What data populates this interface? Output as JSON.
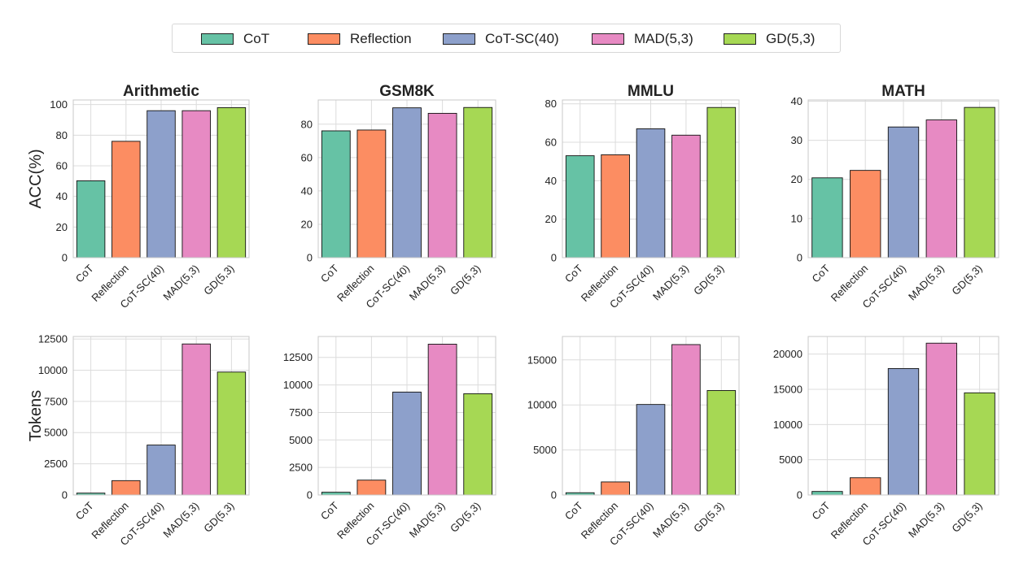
{
  "colors": {
    "CoT": "#66c2a5",
    "Reflection": "#fc8d62",
    "CoT-SC(40)": "#8da0cb",
    "MAD(5,3)": "#e78ac3",
    "GD(5,3)": "#a6d854",
    "grid": "#dcdcdc",
    "axis": "#c8c8c8",
    "text": "#222222"
  },
  "legend": {
    "items": [
      "CoT",
      "Reflection",
      "CoT-SC(40)",
      "MAD(5,3)",
      "GD(5,3)"
    ]
  },
  "row_labels": {
    "top": "ACC(%)",
    "bottom": "Tokens"
  },
  "chart_data": [
    {
      "type": "bar",
      "title": "Arithmetic",
      "ylabel": "ACC(%)",
      "categories": [
        "CoT",
        "Reflection",
        "CoT-SC(40)",
        "MAD(5,3)",
        "GD(5,3)"
      ],
      "values": [
        50.2,
        76,
        96,
        96,
        98
      ],
      "ylim": [
        0,
        103
      ],
      "yticks": [
        0,
        20,
        40,
        60,
        80,
        100
      ],
      "grid": true
    },
    {
      "type": "bar",
      "title": "GSM8K",
      "ylabel": "",
      "categories": [
        "CoT",
        "Reflection",
        "CoT-SC(40)",
        "MAD(5,3)",
        "GD(5,3)"
      ],
      "values": [
        76,
        76.5,
        89.8,
        86.5,
        90
      ],
      "ylim": [
        0,
        94.5
      ],
      "yticks": [
        0,
        20,
        40,
        60,
        80
      ],
      "grid": true
    },
    {
      "type": "bar",
      "title": "MMLU",
      "ylabel": "",
      "categories": [
        "CoT",
        "Reflection",
        "CoT-SC(40)",
        "MAD(5,3)",
        "GD(5,3)"
      ],
      "values": [
        53,
        53.5,
        67,
        63.7,
        78.1
      ],
      "ylim": [
        0,
        82
      ],
      "yticks": [
        0,
        20,
        40,
        60,
        80
      ],
      "grid": true
    },
    {
      "type": "bar",
      "title": "MATH",
      "ylabel": "",
      "categories": [
        "CoT",
        "Reflection",
        "CoT-SC(40)",
        "MAD(5,3)",
        "GD(5,3)"
      ],
      "values": [
        20.4,
        22.3,
        33.4,
        35.2,
        38.4
      ],
      "ylim": [
        0,
        40.3
      ],
      "yticks": [
        0,
        10,
        20,
        30,
        40
      ],
      "grid": true
    },
    {
      "type": "bar",
      "title": "",
      "ylabel": "Tokens",
      "categories": [
        "CoT",
        "Reflection",
        "CoT-SC(40)",
        "MAD(5,3)",
        "GD(5,3)"
      ],
      "values": [
        150,
        1150,
        4000,
        12100,
        9850
      ],
      "ylim": [
        0,
        12700
      ],
      "yticks": [
        0,
        2500,
        5000,
        7500,
        10000,
        12500
      ],
      "grid": true
    },
    {
      "type": "bar",
      "title": "",
      "ylabel": "",
      "categories": [
        "CoT",
        "Reflection",
        "CoT-SC(40)",
        "MAD(5,3)",
        "GD(5,3)"
      ],
      "values": [
        250,
        1350,
        9350,
        13700,
        9200
      ],
      "ylim": [
        0,
        14400
      ],
      "yticks": [
        0,
        2500,
        5000,
        7500,
        10000,
        12500
      ],
      "grid": true
    },
    {
      "type": "bar",
      "title": "",
      "ylabel": "",
      "categories": [
        "CoT",
        "Reflection",
        "CoT-SC(40)",
        "MAD(5,3)",
        "GD(5,3)"
      ],
      "values": [
        250,
        1450,
        10050,
        16700,
        11600
      ],
      "ylim": [
        0,
        17600
      ],
      "yticks": [
        0,
        5000,
        10000,
        15000
      ],
      "grid": true
    },
    {
      "type": "bar",
      "title": "",
      "ylabel": "",
      "categories": [
        "CoT",
        "Reflection",
        "CoT-SC(40)",
        "MAD(5,3)",
        "GD(5,3)"
      ],
      "values": [
        500,
        2450,
        17950,
        21550,
        14500
      ],
      "ylim": [
        0,
        22500
      ],
      "yticks": [
        0,
        5000,
        10000,
        15000,
        20000
      ],
      "grid": true
    }
  ]
}
